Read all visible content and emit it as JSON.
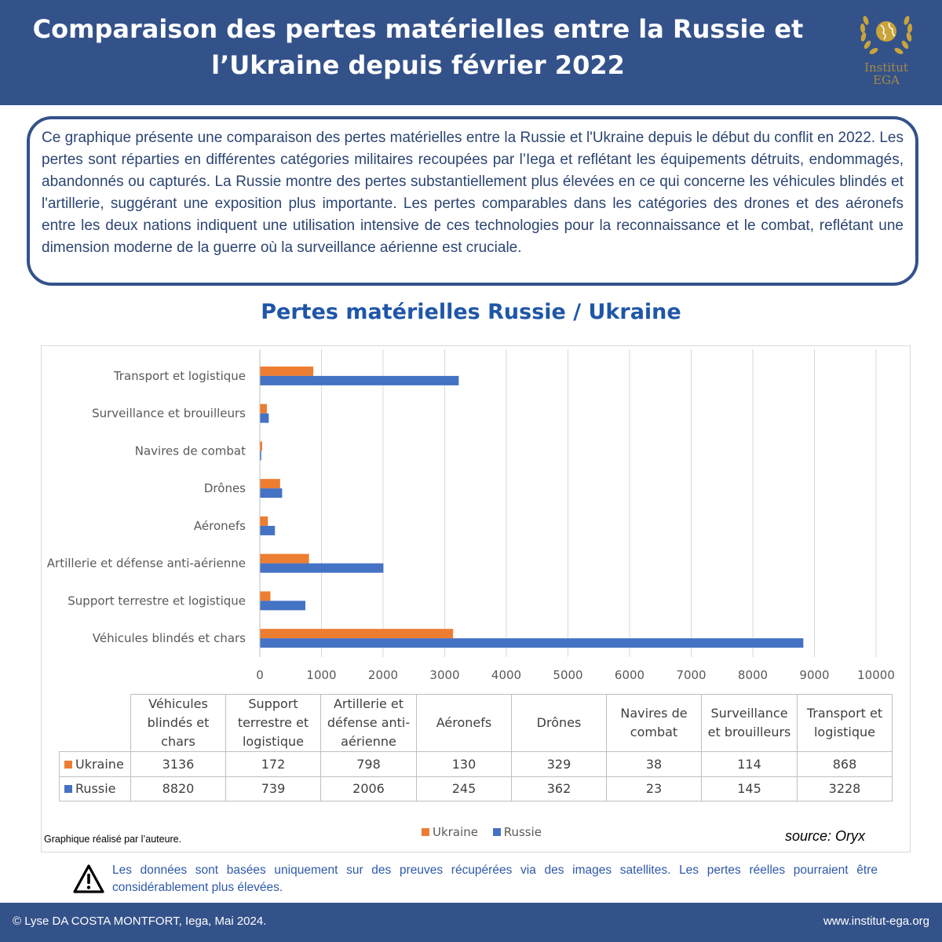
{
  "header": {
    "title_line1": "Comparaison des pertes matérielles entre la Russie et",
    "title_line2": "l’Ukraine depuis février 2022",
    "logo_line1": "Institut",
    "logo_line2": "EGA",
    "logo_icon": "laurel-globe-icon",
    "logo_color": "#c9a43a"
  },
  "intro": "Ce graphique présente une comparaison des pertes matérielles entre la Russie et l'Ukraine depuis le début du conflit en 2022. Les pertes sont réparties en différentes catégories militaires recoupées par l’Iega et reflétant les équipements détruits, endommagés, abandonnés ou capturés. La Russie montre des pertes substantiellement plus élevées en ce qui concerne les véhicules blindés et l'artillerie, suggérant une exposition plus importante. Les pertes comparables dans les catégories des drones et des aéronefs entre les deux nations indiquent une utilisation intensive de ces technologies pour la reconnaissance et le combat, reflétant une dimension moderne de la guerre où la surveillance aérienne est cruciale.",
  "chart_data": {
    "type": "bar",
    "orientation": "horizontal",
    "title": "Pertes matérielles Russie / Ukraine",
    "categories": [
      "Véhicules blindés et chars",
      "Support terrestre et logistique",
      "Artillerie et défense anti-aérienne",
      "Aéronefs",
      "Drônes",
      "Navires de combat",
      "Surveillance et brouilleurs",
      "Transport et logistique"
    ],
    "table_headers": [
      [
        "Véhicules",
        "blindés et",
        "chars"
      ],
      [
        "Support",
        "terrestre et",
        "logistique"
      ],
      [
        "Artillerie et",
        "défense anti-",
        "aérienne"
      ],
      [
        "Aéronefs"
      ],
      [
        "Drônes"
      ],
      [
        "Navires de",
        "combat"
      ],
      [
        "Surveillance",
        "et brouilleurs"
      ],
      [
        "Transport et",
        "logistique"
      ]
    ],
    "series": [
      {
        "name": "Ukraine",
        "color": "#ed7d31",
        "values": [
          3136,
          172,
          798,
          130,
          329,
          38,
          114,
          868
        ]
      },
      {
        "name": "Russie",
        "color": "#4472c4",
        "values": [
          8820,
          739,
          2006,
          245,
          362,
          23,
          145,
          3228
        ]
      }
    ],
    "xlim": [
      0,
      10000
    ],
    "xticks": [
      0,
      1000,
      2000,
      3000,
      4000,
      5000,
      6000,
      7000,
      8000,
      9000,
      10000
    ],
    "grid": true,
    "legend_position": "bottom",
    "xlabel": "",
    "ylabel": ""
  },
  "credit": "Graphique réalisé par l’auteure.",
  "source": "source:  Oryx",
  "warning": {
    "icon": "warning-triangle-icon",
    "text": "Les données sont basées uniquement sur des preuves récupérées via des images satellites. Les pertes réelles pourraient être considérablement plus élevées."
  },
  "footer": {
    "left": "© Lyse DA COSTA MONTFORT, Iega, Mai 2024.",
    "right": "www.institut-ega.org"
  }
}
